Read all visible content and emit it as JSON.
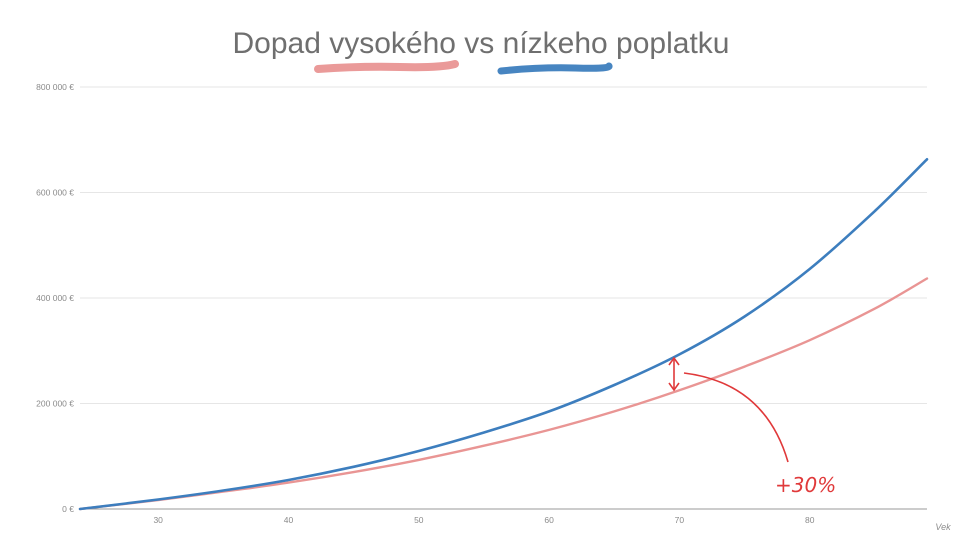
{
  "chart_data": {
    "type": "line",
    "title": "Dopad vysokého vs nízkeho poplatku",
    "xlabel": "Vek",
    "ylabel": "",
    "xlim": [
      24,
      89
    ],
    "ylim": [
      0,
      800000
    ],
    "x_ticks": [
      30,
      40,
      50,
      60,
      70,
      80
    ],
    "y_ticks": [
      0,
      200000,
      400000,
      600000,
      800000
    ],
    "x_tick_labels": [
      "30",
      "40",
      "50",
      "60",
      "70",
      "80"
    ],
    "y_tick_labels": [
      "0 €",
      "200 000 €",
      "400 000 €",
      "600 000 €",
      "800 000 €"
    ],
    "grid": true,
    "legend": "brush-stroke swatches under the title (red: vysokého, blue: nízkeho)",
    "series": [
      {
        "color": "#e99594",
        "x": [
          24,
          30,
          35,
          40,
          45,
          50,
          55,
          60,
          65,
          70,
          75,
          80,
          85,
          89
        ],
        "y": [
          0,
          17000,
          33000,
          50000,
          70000,
          93000,
          120000,
          150000,
          185000,
          225000,
          270000,
          320000,
          380000,
          437000
        ]
      },
      {
        "color": "#3d7ebe",
        "x": [
          24,
          30,
          35,
          40,
          45,
          50,
          55,
          60,
          65,
          70,
          75,
          80,
          85,
          89
        ],
        "y": [
          0,
          18000,
          35000,
          55000,
          80000,
          110000,
          145000,
          185000,
          235000,
          293000,
          365000,
          455000,
          565000,
          663000
        ]
      }
    ],
    "annotations": [
      {
        "text": "+30%",
        "at_x": 70
      }
    ]
  },
  "colors": {
    "high_fee": "#e99594",
    "low_fee": "#3d7ebe",
    "annotation": "#e0393a"
  }
}
